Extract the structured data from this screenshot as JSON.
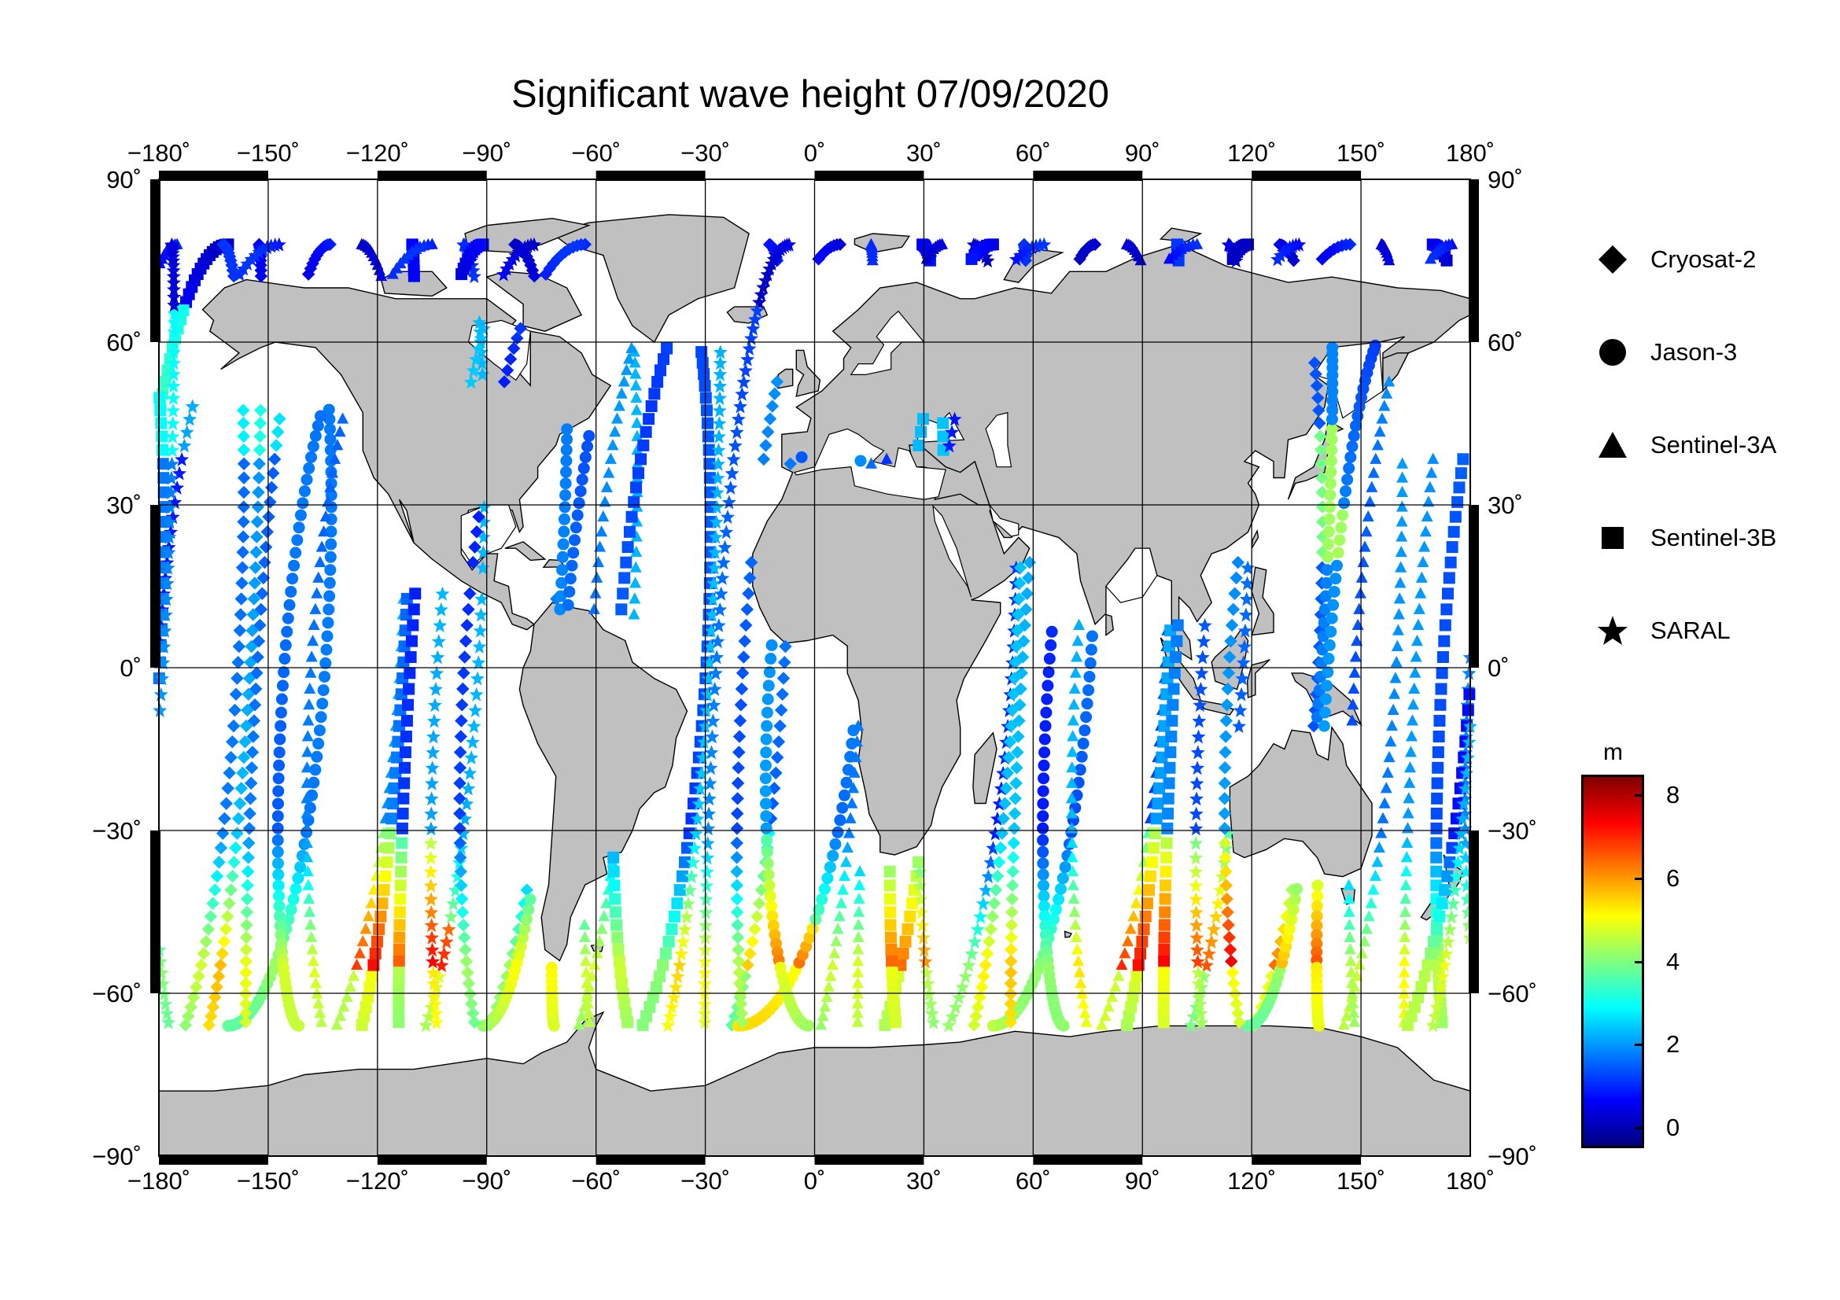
{
  "title": "Significant wave height 07/09/2020",
  "map": {
    "lon_range": [
      -180,
      180
    ],
    "lat_range": [
      -90,
      90
    ],
    "lon_ticks": [
      "−180˚",
      "−150˚",
      "−120˚",
      "−90˚",
      "−60˚",
      "−30˚",
      "0˚",
      "30˚",
      "60˚",
      "90˚",
      "120˚",
      "150˚",
      "180˚"
    ],
    "lat_ticks_left": [
      "90˚",
      "60˚",
      "30˚",
      "0˚",
      "−30˚",
      "−60˚",
      "−90˚"
    ],
    "lat_ticks_right": [
      "90˚",
      "60˚",
      "30˚",
      "0˚",
      "−30˚",
      "−60˚",
      "−90˚"
    ],
    "grid": true,
    "land_color": "#c0c0c0",
    "ocean_color": "#ffffff"
  },
  "legend": {
    "placement": "right",
    "items": [
      {
        "label": "Cryosat-2",
        "symbol": "diamond"
      },
      {
        "label": "Jason-3",
        "symbol": "circle"
      },
      {
        "label": "Sentinel-3A",
        "symbol": "triangle"
      },
      {
        "label": "Sentinel-3B",
        "symbol": "square"
      },
      {
        "label": "SARAL",
        "symbol": "star"
      }
    ]
  },
  "colorbar": {
    "unit": "m",
    "range": [
      -0.5,
      8.5
    ],
    "ticks": [
      "8",
      "6",
      "4",
      "2",
      "0"
    ],
    "tick_values": [
      8,
      6,
      4,
      2,
      0
    ],
    "colormap": [
      "#00007f",
      "#0000ff",
      "#007fff",
      "#00ffff",
      "#7fff7f",
      "#ffff00",
      "#ff7f00",
      "#ff0000",
      "#7f0000"
    ]
  }
}
